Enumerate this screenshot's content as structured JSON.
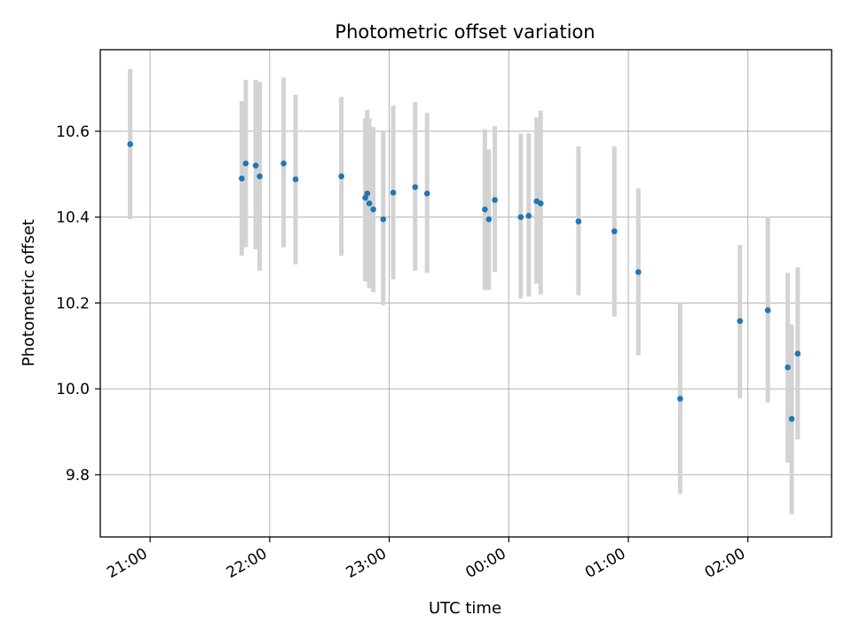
{
  "chart_data": {
    "type": "scatter",
    "title": "Photometric offset variation",
    "xlabel": "UTC time",
    "ylabel": "Photometric offset",
    "x_tick_labels": [
      "21:00",
      "22:00",
      "23:00",
      "00:00",
      "01:00",
      "02:00"
    ],
    "y_tick_labels": [
      "9.8",
      "10.0",
      "10.2",
      "10.4",
      "10.6"
    ],
    "grid": true,
    "marker_color": "#1f77b4",
    "errorbar_color": "#d3d3d3",
    "points": [
      {
        "time": "20:50",
        "y": 10.57,
        "lo": 10.395,
        "hi": 10.745
      },
      {
        "time": "21:46",
        "y": 10.49,
        "lo": 10.31,
        "hi": 10.67
      },
      {
        "time": "21:48",
        "y": 10.525,
        "lo": 10.33,
        "hi": 10.72
      },
      {
        "time": "21:53",
        "y": 10.52,
        "lo": 10.325,
        "hi": 10.72
      },
      {
        "time": "21:55",
        "y": 10.495,
        "lo": 10.275,
        "hi": 10.715
      },
      {
        "time": "22:07",
        "y": 10.525,
        "lo": 10.33,
        "hi": 10.725
      },
      {
        "time": "22:13",
        "y": 10.488,
        "lo": 10.29,
        "hi": 10.685
      },
      {
        "time": "22:36",
        "y": 10.495,
        "lo": 10.31,
        "hi": 10.68
      },
      {
        "time": "22:48",
        "y": 10.445,
        "lo": 10.25,
        "hi": 10.63
      },
      {
        "time": "22:49",
        "y": 10.455,
        "lo": 10.265,
        "hi": 10.65
      },
      {
        "time": "22:50",
        "y": 10.432,
        "lo": 10.235,
        "hi": 10.63
      },
      {
        "time": "22:52",
        "y": 10.418,
        "lo": 10.225,
        "hi": 10.61
      },
      {
        "time": "22:57",
        "y": 10.395,
        "lo": 10.195,
        "hi": 10.6
      },
      {
        "time": "23:02",
        "y": 10.457,
        "lo": 10.255,
        "hi": 10.66
      },
      {
        "time": "23:13",
        "y": 10.47,
        "lo": 10.275,
        "hi": 10.668
      },
      {
        "time": "23:19",
        "y": 10.455,
        "lo": 10.27,
        "hi": 10.643
      },
      {
        "time": "23:48",
        "y": 10.418,
        "lo": 10.23,
        "hi": 10.605
      },
      {
        "time": "23:50",
        "y": 10.395,
        "lo": 10.23,
        "hi": 10.558
      },
      {
        "time": "23:53",
        "y": 10.44,
        "lo": 10.272,
        "hi": 10.612
      },
      {
        "time": "00:06",
        "y": 10.4,
        "lo": 10.21,
        "hi": 10.595
      },
      {
        "time": "00:10",
        "y": 10.403,
        "lo": 10.215,
        "hi": 10.595
      },
      {
        "time": "00:14",
        "y": 10.437,
        "lo": 10.245,
        "hi": 10.632
      },
      {
        "time": "00:16",
        "y": 10.432,
        "lo": 10.22,
        "hi": 10.648
      },
      {
        "time": "00:35",
        "y": 10.39,
        "lo": 10.218,
        "hi": 10.565
      },
      {
        "time": "00:53",
        "y": 10.367,
        "lo": 10.168,
        "hi": 10.565
      },
      {
        "time": "01:05",
        "y": 10.272,
        "lo": 10.078,
        "hi": 10.467
      },
      {
        "time": "01:26",
        "y": 9.977,
        "lo": 9.755,
        "hi": 10.2
      },
      {
        "time": "01:56",
        "y": 10.158,
        "lo": 9.978,
        "hi": 10.335
      },
      {
        "time": "02:10",
        "y": 10.183,
        "lo": 9.968,
        "hi": 10.4
      },
      {
        "time": "02:20",
        "y": 10.05,
        "lo": 9.828,
        "hi": 10.27
      },
      {
        "time": "02:22",
        "y": 9.93,
        "lo": 9.708,
        "hi": 10.15
      },
      {
        "time": "02:25",
        "y": 10.082,
        "lo": 9.882,
        "hi": 10.283
      }
    ]
  }
}
